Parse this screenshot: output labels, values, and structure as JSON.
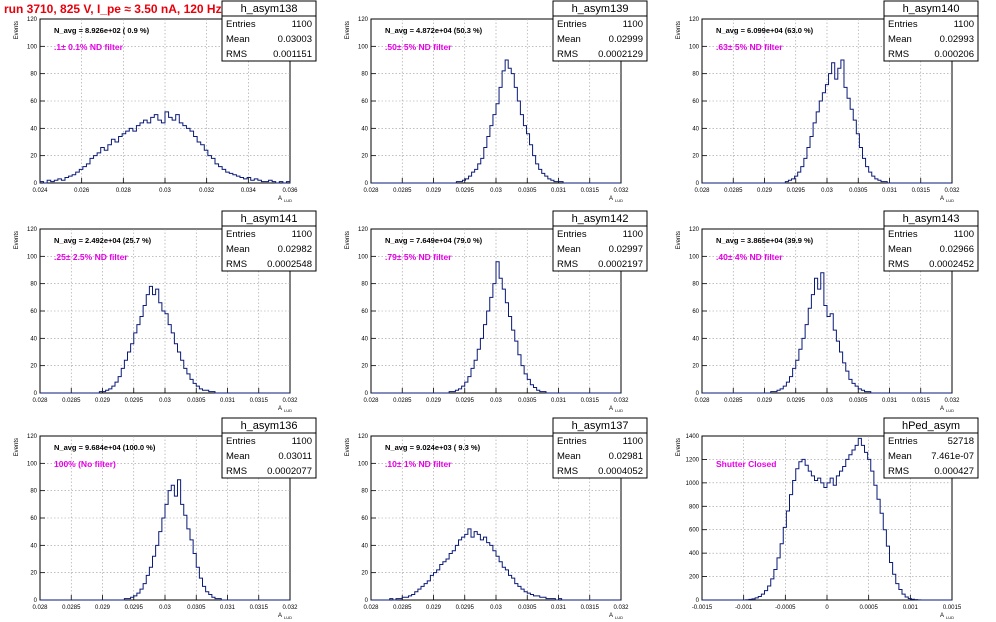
{
  "page_title": "run 3710,   825 V, I_pe ≈ 3.50 nA, 120 Hz",
  "colors": {
    "hist": "#0a1a78",
    "title": "#e8000b",
    "label": "#e600e6",
    "grid": "#9a9a9a"
  },
  "chart_data": [
    {
      "type": "bar",
      "subtype": "histogram",
      "name": "h_asym138",
      "stats": [
        [
          "Entries",
          "1100"
        ],
        [
          "Mean",
          "0.03003"
        ],
        [
          "RMS",
          "0.001151"
        ]
      ],
      "navg": "N_avg = 8.926e+02 ( 0.9 %)",
      "label": ".1± 0.1% ND filter",
      "ylabel": "Events",
      "xlabel": "A",
      "xlim": [
        0.024,
        0.036
      ],
      "ylim": [
        0,
        120
      ],
      "xticks": [
        "0.024",
        "0.026",
        "0.028",
        "0.03",
        "0.032",
        "0.034",
        "0.036"
      ],
      "yticks": [
        "0",
        "20",
        "40",
        "60",
        "80",
        "100",
        "120"
      ],
      "values": [
        1,
        0,
        2,
        1,
        2,
        3,
        2,
        4,
        5,
        6,
        8,
        10,
        12,
        14,
        18,
        20,
        22,
        26,
        24,
        28,
        32,
        30,
        34,
        36,
        38,
        40,
        38,
        42,
        44,
        46,
        44,
        48,
        50,
        46,
        44,
        52,
        48,
        46,
        50,
        44,
        42,
        40,
        38,
        34,
        30,
        28,
        24,
        20,
        18,
        14,
        12,
        10,
        8,
        7,
        6,
        5,
        4,
        3,
        4,
        2,
        3,
        2,
        1,
        1,
        2,
        1,
        0,
        1,
        0,
        1
      ]
    },
    {
      "type": "bar",
      "subtype": "histogram",
      "name": "h_asym139",
      "stats": [
        [
          "Entries",
          "1100"
        ],
        [
          "Mean",
          "0.02999"
        ],
        [
          "RMS",
          "0.0002129"
        ]
      ],
      "navg": "N_avg = 4.872e+04 (50.3 %)",
      "label": ".50± 5% ND filter",
      "ylabel": "Events",
      "xlabel": "A",
      "xlim": [
        0.028,
        0.032
      ],
      "ylim": [
        0,
        120
      ],
      "xticks": [
        "0.028",
        "0.0285",
        "0.029",
        "0.0295",
        "0.03",
        "0.0305",
        "0.031",
        "0.0315",
        "0.032"
      ],
      "yticks": [
        "0",
        "20",
        "40",
        "60",
        "80",
        "100",
        "120"
      ],
      "values": [
        0,
        0,
        0,
        0,
        0,
        0,
        0,
        0,
        0,
        0,
        0,
        0,
        0,
        0,
        0,
        0,
        0,
        0,
        0,
        0,
        0,
        0,
        0,
        0,
        0,
        0,
        0,
        0,
        1,
        1,
        2,
        3,
        5,
        8,
        10,
        14,
        18,
        26,
        34,
        42,
        50,
        58,
        70,
        82,
        90,
        84,
        80,
        70,
        60,
        50,
        42,
        36,
        28,
        20,
        14,
        10,
        7,
        5,
        3,
        2,
        1,
        1,
        1,
        0,
        0,
        0,
        0,
        0,
        0,
        0,
        0,
        0,
        0,
        0,
        0,
        0,
        0,
        0,
        0,
        0,
        0,
        0
      ]
    },
    {
      "type": "bar",
      "subtype": "histogram",
      "name": "h_asym140",
      "stats": [
        [
          "Entries",
          "1100"
        ],
        [
          "Mean",
          "0.02993"
        ],
        [
          "RMS",
          "0.000206"
        ]
      ],
      "navg": "N_avg = 6.099e+04 (63.0 %)",
      "label": ".63± 5% ND filter",
      "ylabel": "Events",
      "xlabel": "A",
      "xlim": [
        0.028,
        0.032
      ],
      "ylim": [
        0,
        120
      ],
      "xticks": [
        "0.028",
        "0.0285",
        "0.029",
        "0.0295",
        "0.03",
        "0.0305",
        "0.031",
        "0.0315",
        "0.032"
      ],
      "yticks": [
        "0",
        "20",
        "40",
        "60",
        "80",
        "100",
        "120"
      ],
      "values": [
        0,
        0,
        0,
        0,
        0,
        0,
        0,
        0,
        0,
        0,
        0,
        0,
        0,
        0,
        0,
        0,
        0,
        0,
        0,
        0,
        0,
        0,
        0,
        0,
        0,
        0,
        0,
        1,
        2,
        3,
        5,
        8,
        12,
        18,
        26,
        34,
        44,
        52,
        60,
        66,
        72,
        80,
        88,
        76,
        84,
        90,
        70,
        62,
        54,
        46,
        36,
        26,
        18,
        12,
        8,
        5,
        3,
        2,
        1,
        1,
        0,
        0,
        0,
        0,
        0,
        0,
        0,
        0,
        0,
        0,
        0,
        0,
        0,
        0,
        0,
        0,
        0,
        0,
        0,
        0,
        0
      ]
    },
    {
      "type": "bar",
      "subtype": "histogram",
      "name": "h_asym141",
      "stats": [
        [
          "Entries",
          "1100"
        ],
        [
          "Mean",
          "0.02982"
        ],
        [
          "RMS",
          "0.0002548"
        ]
      ],
      "navg": "N_avg = 2.492e+04 (25.7 %)",
      "label": ".25± 2.5% ND filter",
      "ylabel": "Events",
      "xlabel": "A",
      "xlim": [
        0.028,
        0.032
      ],
      "ylim": [
        0,
        120
      ],
      "xticks": [
        "0.028",
        "0.0285",
        "0.029",
        "0.0295",
        "0.03",
        "0.0305",
        "0.031",
        "0.0315",
        "0.032"
      ],
      "yticks": [
        "0",
        "20",
        "40",
        "60",
        "80",
        "100",
        "120"
      ],
      "values": [
        0,
        0,
        0,
        0,
        0,
        0,
        0,
        0,
        0,
        0,
        0,
        0,
        0,
        0,
        0,
        0,
        0,
        0,
        0,
        1,
        1,
        2,
        3,
        5,
        8,
        12,
        18,
        24,
        30,
        36,
        44,
        50,
        56,
        64,
        72,
        78,
        72,
        76,
        66,
        60,
        58,
        50,
        44,
        36,
        30,
        24,
        18,
        14,
        10,
        7,
        5,
        3,
        2,
        2,
        1,
        1,
        0,
        0,
        0,
        0,
        0,
        0,
        0,
        0,
        0,
        0,
        0,
        0,
        0,
        0,
        0,
        0,
        0,
        0,
        0,
        0,
        0,
        0,
        0,
        0
      ]
    },
    {
      "type": "bar",
      "subtype": "histogram",
      "name": "h_asym142",
      "stats": [
        [
          "Entries",
          "1100"
        ],
        [
          "Mean",
          "0.02997"
        ],
        [
          "RMS",
          "0.0002197"
        ]
      ],
      "navg": "N_avg = 7.649e+04 (79.0 %)",
      "label": ".79± 5% ND filter",
      "ylabel": "Events",
      "xlabel": "A",
      "xlim": [
        0.028,
        0.032
      ],
      "ylim": [
        0,
        120
      ],
      "xticks": [
        "0.028",
        "0.0285",
        "0.029",
        "0.0295",
        "0.03",
        "0.0305",
        "0.031",
        "0.0315",
        "0.032"
      ],
      "yticks": [
        "0",
        "20",
        "40",
        "60",
        "80",
        "100",
        "120"
      ],
      "values": [
        0,
        0,
        0,
        0,
        0,
        0,
        0,
        0,
        0,
        0,
        0,
        0,
        0,
        0,
        0,
        0,
        0,
        0,
        0,
        0,
        0,
        0,
        0,
        0,
        0,
        1,
        1,
        2,
        3,
        5,
        8,
        12,
        18,
        24,
        32,
        40,
        50,
        60,
        70,
        80,
        96,
        84,
        76,
        66,
        56,
        46,
        38,
        28,
        20,
        14,
        10,
        6,
        4,
        2,
        1,
        1,
        0,
        0,
        0,
        0,
        0,
        0,
        0,
        0,
        0,
        0,
        0,
        0,
        0,
        0,
        0,
        0,
        0,
        0,
        0,
        0,
        0,
        0,
        0,
        0
      ]
    },
    {
      "type": "bar",
      "subtype": "histogram",
      "name": "h_asym143",
      "stats": [
        [
          "Entries",
          "1100"
        ],
        [
          "Mean",
          "0.02966"
        ],
        [
          "RMS",
          "0.0002452"
        ]
      ],
      "navg": "N_avg = 3.865e+04 (39.9 %)",
      "label": ".40± 4% ND filter",
      "ylabel": "Events",
      "xlabel": "A",
      "xlim": [
        0.028,
        0.032
      ],
      "ylim": [
        0,
        120
      ],
      "xticks": [
        "0.028",
        "0.0285",
        "0.029",
        "0.0295",
        "0.03",
        "0.0305",
        "0.031",
        "0.0315",
        "0.032"
      ],
      "yticks": [
        "0",
        "20",
        "40",
        "60",
        "80",
        "100",
        "120"
      ],
      "values": [
        0,
        0,
        0,
        0,
        0,
        0,
        0,
        0,
        0,
        0,
        0,
        0,
        0,
        0,
        0,
        0,
        0,
        0,
        0,
        0,
        0,
        0,
        1,
        1,
        2,
        3,
        5,
        8,
        12,
        18,
        24,
        32,
        40,
        50,
        62,
        72,
        84,
        76,
        88,
        64,
        56,
        58,
        46,
        38,
        30,
        22,
        16,
        10,
        7,
        5,
        3,
        2,
        1,
        1,
        0,
        0,
        0,
        0,
        0,
        0,
        0,
        0,
        0,
        0,
        0,
        0,
        0,
        0,
        0,
        0,
        0,
        0,
        0,
        0,
        0,
        0,
        0,
        0,
        0,
        0
      ]
    },
    {
      "type": "bar",
      "subtype": "histogram",
      "name": "h_asym136",
      "stats": [
        [
          "Entries",
          "1100"
        ],
        [
          "Mean",
          "0.03011"
        ],
        [
          "RMS",
          "0.0002077"
        ]
      ],
      "navg": "N_avg = 9.684e+04 (100.0 %)",
      "label": "100% (No filter)",
      "ylabel": "Events",
      "xlabel": "A",
      "xlim": [
        0.028,
        0.032
      ],
      "ylim": [
        0,
        120
      ],
      "xticks": [
        "0.028",
        "0.0285",
        "0.029",
        "0.0295",
        "0.03",
        "0.0305",
        "0.031",
        "0.0315",
        "0.032"
      ],
      "yticks": [
        "0",
        "20",
        "40",
        "60",
        "80",
        "100",
        "120"
      ],
      "values": [
        0,
        0,
        0,
        0,
        0,
        0,
        0,
        0,
        0,
        0,
        0,
        0,
        0,
        0,
        0,
        0,
        0,
        0,
        0,
        0,
        0,
        0,
        0,
        0,
        0,
        0,
        0,
        1,
        1,
        2,
        3,
        5,
        8,
        12,
        18,
        24,
        32,
        40,
        50,
        60,
        70,
        80,
        84,
        76,
        88,
        70,
        62,
        52,
        44,
        34,
        24,
        16,
        10,
        6,
        4,
        2,
        1,
        1,
        0,
        0,
        0,
        0,
        0,
        0,
        0,
        0,
        0,
        0,
        0,
        0,
        0,
        0,
        0,
        0,
        0,
        0,
        0,
        0,
        0,
        0
      ]
    },
    {
      "type": "bar",
      "subtype": "histogram",
      "name": "h_asym137",
      "stats": [
        [
          "Entries",
          "1100"
        ],
        [
          "Mean",
          "0.02981"
        ],
        [
          "RMS",
          "0.0004052"
        ]
      ],
      "navg": "N_avg = 9.024e+03 ( 9.3 %)",
      "label": ".10± 1% ND filter",
      "ylabel": "Events",
      "xlabel": "A",
      "xlim": [
        0.028,
        0.032
      ],
      "ylim": [
        0,
        120
      ],
      "xticks": [
        "0.028",
        "0.0285",
        "0.029",
        "0.0295",
        "0.03",
        "0.0305",
        "0.031",
        "0.0315",
        "0.032"
      ],
      "yticks": [
        "0",
        "20",
        "40",
        "60",
        "80",
        "100",
        "120"
      ],
      "values": [
        0,
        0,
        0,
        0,
        0,
        0,
        1,
        0,
        1,
        1,
        2,
        2,
        3,
        4,
        6,
        8,
        10,
        12,
        14,
        18,
        20,
        22,
        26,
        28,
        30,
        34,
        36,
        40,
        44,
        46,
        48,
        52,
        46,
        50,
        48,
        44,
        46,
        42,
        40,
        36,
        32,
        28,
        24,
        22,
        18,
        16,
        12,
        10,
        8,
        6,
        5,
        4,
        3,
        3,
        2,
        2,
        1,
        1,
        1,
        0,
        1,
        0,
        0,
        0,
        0,
        0,
        0,
        0,
        0,
        0,
        0,
        0,
        0,
        0,
        0,
        0,
        0,
        0,
        0,
        0
      ]
    },
    {
      "type": "bar",
      "subtype": "histogram",
      "name": "hPed_asym",
      "stats": [
        [
          "Entries",
          "52718"
        ],
        [
          "Mean",
          "7.461e-07"
        ],
        [
          "RMS",
          "0.000427"
        ]
      ],
      "navg": "",
      "label": "Shutter Closed",
      "ylabel": "Events",
      "xlabel": "A",
      "xlim": [
        -0.0015,
        0.0015
      ],
      "ylim": [
        0,
        1400
      ],
      "xticks": [
        "-0.0015",
        "-0.001",
        "-0.0005",
        "0",
        "0.0005",
        "0.001",
        "0.0015"
      ],
      "yticks": [
        "0",
        "200",
        "400",
        "600",
        "800",
        "1000",
        "1200",
        "1400"
      ],
      "values": [
        0,
        0,
        0,
        0,
        0,
        0,
        0,
        0,
        0,
        0,
        0,
        0,
        0,
        0,
        2,
        5,
        10,
        18,
        30,
        50,
        80,
        120,
        180,
        260,
        360,
        480,
        620,
        760,
        900,
        1020,
        1120,
        1180,
        1200,
        1150,
        1100,
        1060,
        1020,
        1040,
        1000,
        960,
        1000,
        1040,
        980,
        1060,
        1100,
        1140,
        1200,
        1240,
        1280,
        1320,
        1380,
        1320,
        1260,
        1200,
        1100,
        980,
        860,
        740,
        600,
        460,
        320,
        220,
        140,
        90,
        50,
        26,
        12,
        6,
        3,
        1,
        0,
        0,
        0,
        0,
        0,
        0,
        0,
        0,
        0,
        0
      ]
    }
  ]
}
